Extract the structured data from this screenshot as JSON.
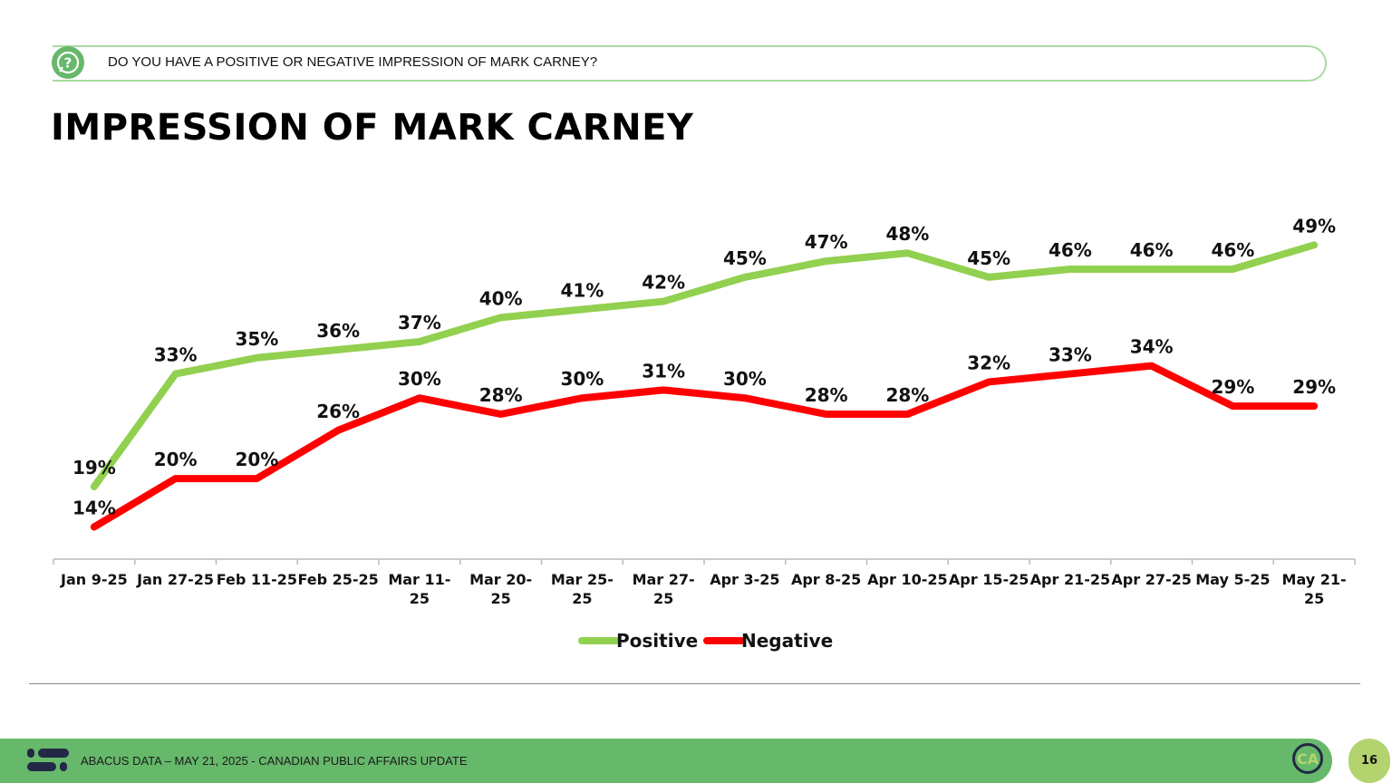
{
  "header": {
    "question": "DO YOU HAVE A POSITIVE OR NEGATIVE IMPRESSION OF MARK CARNEY?",
    "question_icon": "question-bubble-icon"
  },
  "title": "IMPRESSION OF MARK CARNEY",
  "footer": {
    "text": "ABACUS DATA – MAY 21, 2025 - CANADIAN PUBLIC AFFAIRS UPDATE",
    "page": "16",
    "badge": "CA",
    "logo_icon": "abacus-logo-icon"
  },
  "colors": {
    "positive": "#92d050",
    "negative": "#ff0000",
    "footer": "#66b86a",
    "page_badge": "#b2d36e"
  },
  "chart_data": {
    "type": "line",
    "title": "",
    "xlabel": "",
    "ylabel": "",
    "ylim": [
      10,
      55
    ],
    "grid": false,
    "legend": "bottom",
    "categories": [
      [
        "Jan 9-25"
      ],
      [
        "Jan 27-25"
      ],
      [
        "Feb 11-25"
      ],
      [
        "Feb 25-25"
      ],
      [
        "Mar 11-",
        "25"
      ],
      [
        "Mar 20-",
        "25"
      ],
      [
        "Mar 25-",
        "25"
      ],
      [
        "Mar 27-",
        "25"
      ],
      [
        "Apr 3-25"
      ],
      [
        "Apr 8-25"
      ],
      [
        "Apr 10-25"
      ],
      [
        "Apr 15-25"
      ],
      [
        "Apr 21-25"
      ],
      [
        "Apr 27-25"
      ],
      [
        "May 5-25"
      ],
      [
        "May 21-",
        "25"
      ]
    ],
    "series": [
      {
        "name": "Positive",
        "color": "#92d050",
        "values": [
          19,
          33,
          35,
          36,
          37,
          40,
          41,
          42,
          45,
          47,
          48,
          45,
          46,
          46,
          46,
          49
        ]
      },
      {
        "name": "Negative",
        "color": "#ff0000",
        "values": [
          14,
          20,
          20,
          26,
          30,
          28,
          30,
          31,
          30,
          28,
          28,
          32,
          33,
          34,
          29,
          29
        ]
      }
    ]
  }
}
